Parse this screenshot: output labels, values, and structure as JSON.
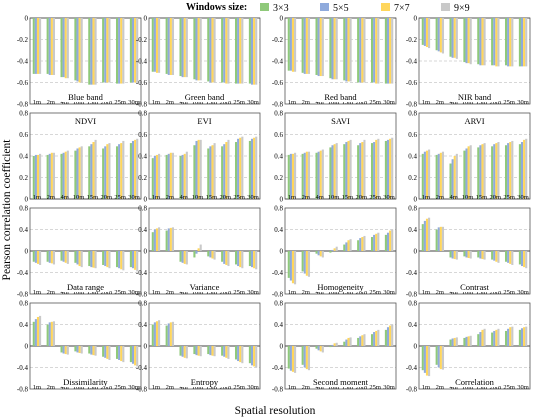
{
  "chart_data": {
    "type": "bar",
    "legend_title": "Windows size:",
    "ylabel": "Pearson correlation coefficient",
    "xlabel": "Spatial resolution",
    "legend_position": "top",
    "grid": "dashed horizontal",
    "categories": [
      "1m",
      "2m",
      "4m",
      "10m",
      "15m",
      "20m",
      "25m",
      "30m"
    ],
    "series": [
      {
        "name": "3×3",
        "color": "#8fc97a"
      },
      {
        "name": "5×5",
        "color": "#8faadc"
      },
      {
        "name": "7×7",
        "color": "#ffd65c"
      },
      {
        "name": "9×9",
        "color": "#c9c9c9"
      }
    ],
    "panels": [
      {
        "title": "Blue band",
        "ylim": [
          -0.8,
          0
        ],
        "yticks": [
          -0.8,
          -0.6,
          -0.4,
          -0.2,
          0
        ],
        "title_pos": "bottom",
        "values": [
          [
            -0.52,
            -0.52,
            -0.52,
            -0.52
          ],
          [
            -0.52,
            -0.53,
            -0.53,
            -0.53
          ],
          [
            -0.55,
            -0.55,
            -0.56,
            -0.56
          ],
          [
            -0.58,
            -0.59,
            -0.6,
            -0.6
          ],
          [
            -0.62,
            -0.62,
            -0.62,
            -0.62
          ],
          [
            -0.6,
            -0.6,
            -0.6,
            -0.6
          ],
          [
            -0.61,
            -0.61,
            -0.61,
            -0.61
          ],
          [
            -0.6,
            -0.6,
            -0.6,
            -0.6
          ]
        ]
      },
      {
        "title": "Green band",
        "ylim": [
          -0.8,
          0
        ],
        "yticks": [
          -0.8,
          -0.6,
          -0.4,
          -0.2,
          0
        ],
        "title_pos": "bottom",
        "values": [
          [
            -0.5,
            -0.5,
            -0.51,
            -0.51
          ],
          [
            -0.52,
            -0.53,
            -0.53,
            -0.53
          ],
          [
            -0.54,
            -0.55,
            -0.55,
            -0.55
          ],
          [
            -0.57,
            -0.58,
            -0.58,
            -0.58
          ],
          [
            -0.59,
            -0.6,
            -0.6,
            -0.6
          ],
          [
            -0.6,
            -0.6,
            -0.61,
            -0.61
          ],
          [
            -0.61,
            -0.61,
            -0.61,
            -0.61
          ],
          [
            -0.61,
            -0.62,
            -0.62,
            -0.62
          ]
        ]
      },
      {
        "title": "Red band",
        "ylim": [
          -0.8,
          0
        ],
        "yticks": [
          -0.8,
          -0.6,
          -0.4,
          -0.2,
          0
        ],
        "title_pos": "bottom",
        "values": [
          [
            -0.49,
            -0.49,
            -0.5,
            -0.5
          ],
          [
            -0.51,
            -0.52,
            -0.52,
            -0.52
          ],
          [
            -0.53,
            -0.54,
            -0.54,
            -0.54
          ],
          [
            -0.56,
            -0.57,
            -0.57,
            -0.57
          ],
          [
            -0.58,
            -0.59,
            -0.59,
            -0.59
          ],
          [
            -0.6,
            -0.6,
            -0.6,
            -0.6
          ],
          [
            -0.6,
            -0.6,
            -0.61,
            -0.61
          ],
          [
            -0.61,
            -0.61,
            -0.61,
            -0.61
          ]
        ]
      },
      {
        "title": "NIR band",
        "ylim": [
          -0.8,
          0
        ],
        "yticks": [
          -0.8,
          -0.6,
          -0.4,
          -0.2,
          0
        ],
        "title_pos": "bottom",
        "values": [
          [
            -0.25,
            -0.26,
            -0.27,
            -0.28
          ],
          [
            -0.3,
            -0.31,
            -0.32,
            -0.33
          ],
          [
            -0.36,
            -0.37,
            -0.37,
            -0.38
          ],
          [
            -0.41,
            -0.42,
            -0.42,
            -0.43
          ],
          [
            -0.43,
            -0.44,
            -0.44,
            -0.44
          ],
          [
            -0.44,
            -0.44,
            -0.45,
            -0.45
          ],
          [
            -0.44,
            -0.45,
            -0.45,
            -0.45
          ],
          [
            -0.45,
            -0.45,
            -0.45,
            -0.45
          ]
        ]
      },
      {
        "title": "NDVI",
        "ylim": [
          0,
          0.8
        ],
        "yticks": [
          0,
          0.2,
          0.4,
          0.6,
          0.8
        ],
        "title_pos": "top",
        "values": [
          [
            0.4,
            0.41,
            0.41,
            0.42
          ],
          [
            0.41,
            0.42,
            0.43,
            0.43
          ],
          [
            0.42,
            0.43,
            0.44,
            0.45
          ],
          [
            0.45,
            0.47,
            0.48,
            0.49
          ],
          [
            0.49,
            0.51,
            0.53,
            0.55
          ],
          [
            0.47,
            0.49,
            0.51,
            0.52
          ],
          [
            0.49,
            0.51,
            0.52,
            0.54
          ],
          [
            0.52,
            0.54,
            0.55,
            0.56
          ]
        ]
      },
      {
        "title": "EVI",
        "ylim": [
          0,
          0.8
        ],
        "yticks": [
          0,
          0.2,
          0.4,
          0.6,
          0.8
        ],
        "title_pos": "top",
        "values": [
          [
            0.38,
            0.4,
            0.41,
            0.42
          ],
          [
            0.41,
            0.42,
            0.43,
            0.43
          ],
          [
            0.4,
            0.41,
            0.42,
            0.44
          ],
          [
            0.5,
            0.54,
            0.55,
            0.55
          ],
          [
            0.47,
            0.49,
            0.5,
            0.52
          ],
          [
            0.49,
            0.51,
            0.53,
            0.55
          ],
          [
            0.53,
            0.56,
            0.57,
            0.58
          ],
          [
            0.54,
            0.56,
            0.57,
            0.58
          ]
        ]
      },
      {
        "title": "SAVI",
        "ylim": [
          0,
          0.8
        ],
        "yticks": [
          0,
          0.2,
          0.4,
          0.6,
          0.8
        ],
        "title_pos": "top",
        "values": [
          [
            0.41,
            0.42,
            0.42,
            0.43
          ],
          [
            0.42,
            0.43,
            0.44,
            0.44
          ],
          [
            0.43,
            0.44,
            0.45,
            0.46
          ],
          [
            0.48,
            0.5,
            0.51,
            0.52
          ],
          [
            0.51,
            0.53,
            0.54,
            0.55
          ],
          [
            0.5,
            0.52,
            0.53,
            0.55
          ],
          [
            0.52,
            0.53,
            0.55,
            0.56
          ],
          [
            0.54,
            0.55,
            0.56,
            0.57
          ]
        ]
      },
      {
        "title": "ARVI",
        "ylim": [
          0,
          0.8
        ],
        "yticks": [
          0,
          0.2,
          0.4,
          0.6,
          0.8
        ],
        "title_pos": "top",
        "values": [
          [
            0.42,
            0.44,
            0.45,
            0.46
          ],
          [
            0.41,
            0.42,
            0.43,
            0.44
          ],
          [
            0.33,
            0.37,
            0.4,
            0.42
          ],
          [
            0.45,
            0.47,
            0.49,
            0.5
          ],
          [
            0.48,
            0.5,
            0.51,
            0.52
          ],
          [
            0.49,
            0.51,
            0.52,
            0.53
          ],
          [
            0.5,
            0.52,
            0.53,
            0.54
          ],
          [
            0.51,
            0.53,
            0.55,
            0.56
          ]
        ]
      },
      {
        "title": "Data range",
        "ylim": [
          -0.8,
          0.8
        ],
        "yticks": [
          -0.8,
          -0.4,
          0,
          0.4,
          0.8
        ],
        "title_pos": "bottom",
        "values": [
          [
            -0.2,
            -0.22,
            -0.24,
            -0.26
          ],
          [
            -0.2,
            -0.22,
            -0.23,
            -0.25
          ],
          [
            -0.18,
            -0.2,
            -0.22,
            -0.24
          ],
          [
            -0.22,
            -0.25,
            -0.28,
            -0.3
          ],
          [
            -0.28,
            -0.3,
            -0.31,
            -0.32
          ],
          [
            -0.26,
            -0.28,
            -0.3,
            -0.32
          ],
          [
            -0.3,
            -0.32,
            -0.34,
            -0.36
          ],
          [
            -0.3,
            -0.32,
            -0.35,
            -0.38
          ]
        ]
      },
      {
        "title": "Variance",
        "ylim": [
          -0.8,
          0.8
        ],
        "yticks": [
          -0.8,
          -0.4,
          0,
          0.4,
          0.8
        ],
        "title_pos": "bottom",
        "values": [
          [
            0.35,
            0.4,
            0.42,
            0.44
          ],
          [
            0.38,
            0.42,
            0.43,
            0.44
          ],
          [
            -0.2,
            -0.22,
            -0.24,
            -0.25
          ],
          [
            -0.12,
            -0.05,
            0.05,
            0.12
          ],
          [
            -0.1,
            -0.12,
            -0.14,
            -0.16
          ],
          [
            -0.2,
            -0.24,
            -0.26,
            -0.28
          ],
          [
            -0.25,
            -0.28,
            -0.3,
            -0.32
          ],
          [
            -0.28,
            -0.3,
            -0.32,
            -0.34
          ]
        ]
      },
      {
        "title": "Homogeneity",
        "ylim": [
          -0.8,
          0.8
        ],
        "yticks": [
          -0.8,
          -0.4,
          0,
          0.4,
          0.8
        ],
        "title_pos": "bottom",
        "values": [
          [
            -0.5,
            -0.55,
            -0.6,
            -0.62
          ],
          [
            -0.38,
            -0.42,
            -0.46,
            -0.48
          ],
          [
            -0.05,
            -0.08,
            -0.1,
            -0.12
          ],
          [
            -0.03,
            0.02,
            0.05,
            0.08
          ],
          [
            0.12,
            0.16,
            0.2,
            0.22
          ],
          [
            0.2,
            0.24,
            0.26,
            0.28
          ],
          [
            0.26,
            0.3,
            0.32,
            0.34
          ],
          [
            0.3,
            0.34,
            0.38,
            0.4
          ]
        ]
      },
      {
        "title": "Contrast",
        "ylim": [
          -0.8,
          0.8
        ],
        "yticks": [
          -0.8,
          -0.4,
          0,
          0.4,
          0.8
        ],
        "title_pos": "bottom",
        "values": [
          [
            0.5,
            0.56,
            0.6,
            0.62
          ],
          [
            0.4,
            0.44,
            0.45,
            0.45
          ],
          [
            -0.12,
            -0.14,
            -0.15,
            -0.16
          ],
          [
            -0.1,
            -0.12,
            -0.13,
            -0.14
          ],
          [
            -0.12,
            -0.14,
            -0.15,
            -0.16
          ],
          [
            -0.16,
            -0.18,
            -0.2,
            -0.22
          ],
          [
            -0.2,
            -0.22,
            -0.24,
            -0.26
          ],
          [
            -0.25,
            -0.28,
            -0.3,
            -0.32
          ]
        ]
      },
      {
        "title": "Dissimilarity",
        "ylim": [
          -0.8,
          0.8
        ],
        "yticks": [
          -0.8,
          -0.4,
          0,
          0.4,
          0.8
        ],
        "title_pos": "bottom",
        "values": [
          [
            0.45,
            0.5,
            0.54,
            0.56
          ],
          [
            0.4,
            0.44,
            0.45,
            0.46
          ],
          [
            -0.12,
            -0.14,
            -0.15,
            -0.16
          ],
          [
            -0.1,
            -0.12,
            -0.13,
            -0.14
          ],
          [
            -0.14,
            -0.16,
            -0.17,
            -0.18
          ],
          [
            -0.2,
            -0.22,
            -0.24,
            -0.26
          ],
          [
            -0.24,
            -0.26,
            -0.28,
            -0.3
          ],
          [
            -0.3,
            -0.33,
            -0.36,
            -0.38
          ]
        ]
      },
      {
        "title": "Entropy",
        "ylim": [
          -0.8,
          0.8
        ],
        "yticks": [
          -0.8,
          -0.4,
          0,
          0.4,
          0.8
        ],
        "title_pos": "bottom",
        "values": [
          [
            0.4,
            0.44,
            0.46,
            0.48
          ],
          [
            0.38,
            0.42,
            0.44,
            0.45
          ],
          [
            -0.18,
            -0.2,
            -0.22,
            -0.23
          ],
          [
            -0.15,
            -0.17,
            -0.18,
            -0.19
          ],
          [
            -0.15,
            -0.17,
            -0.18,
            -0.19
          ],
          [
            -0.18,
            -0.2,
            -0.22,
            -0.24
          ],
          [
            -0.25,
            -0.28,
            -0.3,
            -0.32
          ],
          [
            -0.32,
            -0.36,
            -0.38,
            -0.4
          ]
        ]
      },
      {
        "title": "Second moment",
        "ylim": [
          -0.8,
          0.8
        ],
        "yticks": [
          -0.8,
          -0.4,
          0,
          0.4,
          0.8
        ],
        "title_pos": "bottom",
        "values": [
          [
            -0.42,
            -0.46,
            -0.48,
            -0.5
          ],
          [
            -0.35,
            -0.4,
            -0.43,
            -0.45
          ],
          [
            -0.05,
            -0.08,
            -0.1,
            -0.12
          ],
          [
            -0.02,
            0.02,
            0.05,
            0.06
          ],
          [
            0.08,
            0.12,
            0.15,
            0.16
          ],
          [
            0.15,
            0.18,
            0.2,
            0.22
          ],
          [
            0.22,
            0.26,
            0.28,
            0.3
          ],
          [
            0.3,
            0.35,
            0.38,
            0.4
          ]
        ]
      },
      {
        "title": "Correlation",
        "ylim": [
          -0.8,
          0.8
        ],
        "yticks": [
          -0.8,
          -0.4,
          0,
          0.4,
          0.8
        ],
        "title_pos": "bottom",
        "values": [
          [
            -0.45,
            -0.5,
            -0.55,
            -0.56
          ],
          [
            -0.35,
            -0.4,
            -0.43,
            -0.44
          ],
          [
            0.12,
            0.14,
            0.15,
            0.16
          ],
          [
            0.15,
            0.17,
            0.18,
            0.19
          ],
          [
            0.22,
            0.26,
            0.3,
            0.32
          ],
          [
            0.25,
            0.28,
            0.3,
            0.32
          ],
          [
            0.28,
            0.32,
            0.35,
            0.36
          ],
          [
            0.3,
            0.33,
            0.35,
            0.36
          ]
        ]
      }
    ]
  }
}
